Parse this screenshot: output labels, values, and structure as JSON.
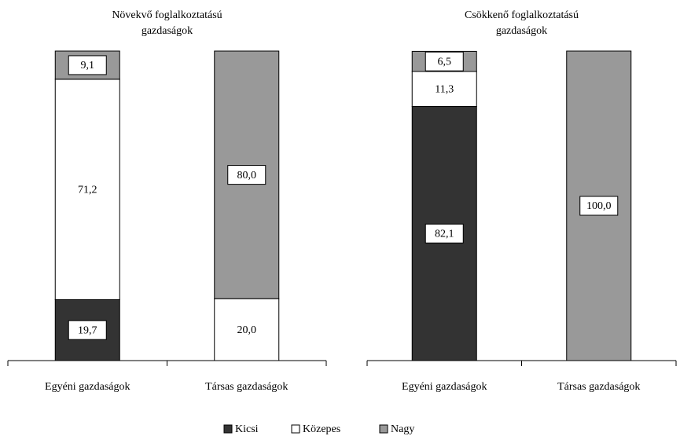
{
  "chart_data": [
    {
      "type": "stacked_bar",
      "title": [
        "Növekvő foglalkoztatású",
        "gazdaságok"
      ],
      "categories": [
        "Egyéni gazdaságok",
        "Társas gazdaságok"
      ],
      "ylim": [
        0,
        100
      ],
      "series": [
        {
          "name": "Kicsi",
          "color": "#333333",
          "values": [
            19.7,
            null
          ],
          "value_labels": [
            "19,7",
            null
          ]
        },
        {
          "name": "Közepes",
          "color": "#ffffff",
          "values": [
            71.2,
            20.0
          ],
          "value_labels": [
            "71,2",
            "20,0"
          ]
        },
        {
          "name": "Nagy",
          "color": "#999999",
          "values": [
            9.1,
            80.0
          ],
          "value_labels": [
            "9,1",
            "80,0"
          ]
        }
      ]
    },
    {
      "type": "stacked_bar",
      "title": [
        "Csökkenő foglalkoztatású",
        "gazdaságok"
      ],
      "categories": [
        "Egyéni gazdaságok",
        "Társas gazdaságok"
      ],
      "ylim": [
        0,
        100
      ],
      "series": [
        {
          "color": "#333333",
          "values": [
            82.1,
            null
          ],
          "value_labels": [
            "82,1",
            null
          ]
        },
        {
          "color": "#ffffff",
          "values": [
            11.3,
            null
          ],
          "value_labels": [
            "11,3",
            null
          ]
        },
        {
          "color": "#999999",
          "values": [
            6.5,
            100.0
          ],
          "value_labels": [
            "6,5",
            "100,0"
          ]
        }
      ]
    }
  ]
}
